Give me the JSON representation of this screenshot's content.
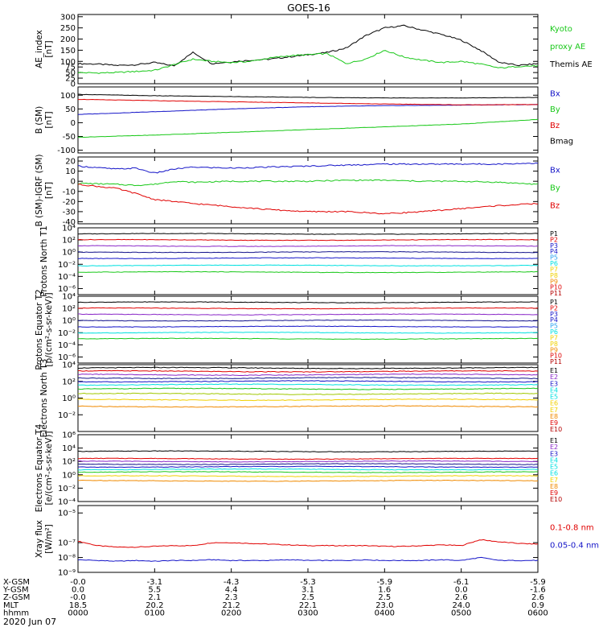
{
  "title": "GOES-16",
  "date": "2020 Jun 07",
  "colors": {
    "black": "#000000",
    "red": "#e00000",
    "green": "#18c818",
    "blue": "#1414c8",
    "cyan": "#00e0e0",
    "magenta": "#e000e0",
    "purple": "#8a28c8",
    "yellow": "#f0d000",
    "orange": "#f08a00",
    "darkred": "#b40000",
    "navy": "#14148c",
    "lightblue": "#28a0f0",
    "brightgreen": "#00dc78",
    "olive": "#a0c800"
  },
  "chart_data": [
    {
      "type": "line",
      "name": "ae",
      "ylabel": "AE_index [nT]",
      "ylim": [
        0,
        310
      ],
      "yticks": [
        "0",
        "25",
        "50",
        "75",
        "100",
        "150",
        "200",
        "250",
        "300"
      ],
      "ytick_values": [
        0,
        25,
        50,
        75,
        100,
        150,
        200,
        250,
        300
      ],
      "x_hours": [
        0.0,
        0.25,
        0.5,
        0.75,
        1.0,
        1.25,
        1.5,
        1.75,
        2.0,
        2.25,
        2.5,
        2.75,
        3.0,
        3.25,
        3.5,
        3.75,
        4.0,
        4.25,
        4.5,
        4.75,
        5.0,
        5.25,
        5.5,
        5.75,
        6.0
      ],
      "series": [
        {
          "name": "Themis AE",
          "color": "black",
          "values": [
            90,
            88,
            82,
            85,
            95,
            80,
            140,
            90,
            98,
            105,
            110,
            120,
            130,
            140,
            160,
            215,
            250,
            260,
            240,
            220,
            195,
            150,
            95,
            82,
            90
          ]
        },
        {
          "name": "Kyoto proxy AE",
          "color": "green",
          "values": [
            50,
            48,
            50,
            55,
            60,
            85,
            110,
            100,
            95,
            100,
            115,
            125,
            130,
            135,
            90,
            110,
            150,
            120,
            105,
            95,
            100,
            88,
            70,
            78,
            80
          ]
        }
      ],
      "legend": [
        {
          "label": "Kyoto",
          "color": "green"
        },
        {
          "label": "proxy AE",
          "color": "green"
        },
        {
          "label": "Themis AE",
          "color": "black"
        }
      ]
    },
    {
      "type": "line",
      "name": "bsm",
      "ylabel": "B (SM) [nT]",
      "ylim": [
        -110,
        130
      ],
      "yticks": [
        "-100",
        "-50",
        "0",
        "50",
        "100"
      ],
      "ytick_values": [
        -100,
        -50,
        0,
        50,
        100
      ],
      "x_hours": [
        0,
        1,
        2,
        3,
        4,
        5,
        6
      ],
      "series": [
        {
          "name": "Bx",
          "color": "blue",
          "values": [
            30,
            40,
            50,
            58,
            62,
            64,
            66
          ]
        },
        {
          "name": "By",
          "color": "green",
          "values": [
            -53,
            -45,
            -35,
            -25,
            -15,
            -5,
            12
          ]
        },
        {
          "name": "Bz",
          "color": "red",
          "values": [
            85,
            80,
            76,
            72,
            68,
            65,
            66
          ]
        },
        {
          "name": "Bmag",
          "color": "black",
          "values": [
            103,
            98,
            95,
            92,
            90,
            90,
            92
          ]
        }
      ],
      "legend": [
        {
          "label": "Bx",
          "color": "blue"
        },
        {
          "label": "By",
          "color": "green"
        },
        {
          "label": "Bz",
          "color": "red"
        },
        {
          "label": "Bmag",
          "color": "black"
        }
      ]
    },
    {
      "type": "line",
      "name": "bigrf",
      "ylabel": "B (SM)-IGRF (SM) [nT]",
      "ylim": [
        -42,
        24
      ],
      "yticks": [
        "-40",
        "-30",
        "-20",
        "-10",
        "0",
        "10",
        "20"
      ],
      "ytick_values": [
        -40,
        -30,
        -20,
        -10,
        0,
        10,
        20
      ],
      "x_hours": [
        0,
        0.5,
        0.75,
        1.0,
        1.25,
        1.5,
        2.0,
        2.5,
        3.0,
        3.5,
        4.0,
        4.5,
        5.0,
        5.5,
        6.0
      ],
      "series": [
        {
          "name": "Bx",
          "color": "blue",
          "values": [
            15,
            12,
            13,
            8,
            12,
            14,
            13,
            14,
            15,
            16,
            17,
            17,
            17,
            17,
            18
          ]
        },
        {
          "name": "By",
          "color": "green",
          "values": [
            -2,
            -3,
            -4,
            -3,
            0,
            -1,
            0,
            0,
            0,
            1,
            1,
            0,
            0,
            -1,
            -3
          ]
        },
        {
          "name": "Bz",
          "color": "red",
          "values": [
            -3,
            -7,
            -12,
            -18,
            -20,
            -22,
            -25,
            -28,
            -30,
            -30,
            -32,
            -30,
            -27,
            -24,
            -22
          ]
        }
      ],
      "legend": [
        {
          "label": "Bx",
          "color": "blue"
        },
        {
          "label": "By",
          "color": "green"
        },
        {
          "label": "Bz",
          "color": "red"
        }
      ]
    },
    {
      "type": "line",
      "log": true,
      "name": "protonsN",
      "ylabel": "Protons North T1",
      "ylim_exp": [
        -7,
        4
      ],
      "yticks": [
        "10⁴",
        "10²",
        "10⁰",
        "10⁻²",
        "10⁻⁴",
        "10⁻⁶"
      ],
      "ytick_exps": [
        4,
        2,
        0,
        -2,
        -4,
        -6
      ],
      "series": [
        {
          "name": "P1",
          "color": "black",
          "log10": 3.0
        },
        {
          "name": "P2",
          "color": "red",
          "log10": 2.0
        },
        {
          "name": "P3",
          "color": "purple",
          "log10": 1.0
        },
        {
          "name": "P4",
          "color": "navy",
          "log10": 0.0
        },
        {
          "name": "P5",
          "color": "blue",
          "log10": -1.0
        },
        {
          "name": "P6",
          "color": "cyan",
          "log10": -2.2
        },
        {
          "name": "P7",
          "color": "green",
          "log10": -3.3
        }
      ],
      "legend": [
        {
          "label": "P1",
          "color": "black"
        },
        {
          "label": "P2",
          "color": "red"
        },
        {
          "label": "P3",
          "color": "blue"
        },
        {
          "label": "P4",
          "color": "blue"
        },
        {
          "label": "P5",
          "color": "lightblue"
        },
        {
          "label": "P6",
          "color": "cyan"
        },
        {
          "label": "P7",
          "color": "yellow"
        },
        {
          "label": "P8",
          "color": "yellow"
        },
        {
          "label": "P9",
          "color": "orange"
        },
        {
          "label": "P10",
          "color": "red"
        },
        {
          "label": "P11",
          "color": "darkred"
        }
      ]
    },
    {
      "type": "line",
      "log": true,
      "name": "protonsE",
      "ylabel": "Protons Equator T2 [p/(cm²-s-sr-keV)]",
      "ylim_exp": [
        -7,
        4
      ],
      "yticks": [
        "10⁴",
        "10²",
        "10⁰",
        "10⁻²",
        "10⁻⁴",
        "10⁻⁶"
      ],
      "ytick_exps": [
        4,
        2,
        0,
        -2,
        -4,
        -6
      ],
      "series": [
        {
          "name": "P1",
          "color": "black",
          "log10": 3.0
        },
        {
          "name": "P2",
          "color": "red",
          "log10": 2.0
        },
        {
          "name": "P3",
          "color": "purple",
          "log10": 1.0
        },
        {
          "name": "P4",
          "color": "navy",
          "log10": 0.0
        },
        {
          "name": "P5",
          "color": "blue",
          "log10": -1.0
        },
        {
          "name": "P6",
          "color": "cyan",
          "log10": -2.0
        },
        {
          "name": "P7",
          "color": "green",
          "log10": -3.0
        }
      ],
      "legend": [
        {
          "label": "P1",
          "color": "black"
        },
        {
          "label": "P2",
          "color": "red"
        },
        {
          "label": "P3",
          "color": "blue"
        },
        {
          "label": "P4",
          "color": "blue"
        },
        {
          "label": "P5",
          "color": "lightblue"
        },
        {
          "label": "P6",
          "color": "cyan"
        },
        {
          "label": "P7",
          "color": "yellow"
        },
        {
          "label": "P8",
          "color": "yellow"
        },
        {
          "label": "P9",
          "color": "orange"
        },
        {
          "label": "P10",
          "color": "red"
        },
        {
          "label": "P11",
          "color": "darkred"
        }
      ]
    },
    {
      "type": "line",
      "log": true,
      "name": "electronsN",
      "ylabel": "Electrons North T3",
      "ylim_exp": [
        -4,
        4
      ],
      "yticks": [
        "10⁴",
        "10²",
        "10⁰",
        "10⁻²"
      ],
      "ytick_exps": [
        4,
        2,
        0,
        -2
      ],
      "series": [
        {
          "name": "E1",
          "color": "black",
          "log10": 3.6
        },
        {
          "name": "E2",
          "color": "red",
          "log10": 3.2
        },
        {
          "name": "E3",
          "color": "purple",
          "log10": 2.8
        },
        {
          "name": "E4",
          "color": "navy",
          "log10": 2.4
        },
        {
          "name": "E5",
          "color": "blue",
          "log10": 2.0
        },
        {
          "name": "E6",
          "color": "cyan",
          "log10": 1.6
        },
        {
          "name": "E7",
          "color": "green",
          "log10": 1.1
        },
        {
          "name": "E8",
          "color": "olive",
          "log10": 0.5
        },
        {
          "name": "E9",
          "color": "yellow",
          "log10": -0.2
        },
        {
          "name": "E10",
          "color": "orange",
          "log10": -1.0
        }
      ],
      "legend": [
        {
          "label": "E1",
          "color": "black"
        },
        {
          "label": "E2",
          "color": "purple"
        },
        {
          "label": "E3",
          "color": "blue"
        },
        {
          "label": "E4",
          "color": "cyan"
        },
        {
          "label": "E5",
          "color": "cyan"
        },
        {
          "label": "E6",
          "color": "yellow"
        },
        {
          "label": "E7",
          "color": "yellow"
        },
        {
          "label": "E8",
          "color": "orange"
        },
        {
          "label": "E9",
          "color": "red"
        },
        {
          "label": "E10",
          "color": "darkred"
        }
      ]
    },
    {
      "type": "line",
      "log": true,
      "name": "electronsE",
      "ylabel": "Electrons Equator T4 [e/(cm²-s-sr-keV)]",
      "ylim_exp": [
        -4,
        6
      ],
      "yticks": [
        "10⁶",
        "10⁴",
        "10²",
        "10⁰",
        "10⁻²",
        "10⁻⁴"
      ],
      "ytick_exps": [
        6,
        4,
        2,
        0,
        -2,
        -4
      ],
      "series": [
        {
          "name": "E1",
          "color": "black",
          "log10": 3.5
        },
        {
          "name": "E2",
          "color": "red",
          "log10": 2.4
        },
        {
          "name": "E3",
          "color": "purple",
          "log10": 2.0
        },
        {
          "name": "E4",
          "color": "navy",
          "log10": 1.6
        },
        {
          "name": "E5",
          "color": "blue",
          "log10": 1.2
        },
        {
          "name": "E6",
          "color": "cyan",
          "log10": 0.8
        },
        {
          "name": "E7",
          "color": "green",
          "log10": 0.4
        },
        {
          "name": "E8",
          "color": "yellow",
          "log10": -0.2
        },
        {
          "name": "E9",
          "color": "orange",
          "log10": -0.9
        }
      ],
      "legend": [
        {
          "label": "E1",
          "color": "black"
        },
        {
          "label": "E2",
          "color": "purple"
        },
        {
          "label": "E3",
          "color": "blue"
        },
        {
          "label": "E4",
          "color": "cyan"
        },
        {
          "label": "E5",
          "color": "cyan"
        },
        {
          "label": "E6",
          "color": "cyan"
        },
        {
          "label": "E7",
          "color": "yellow"
        },
        {
          "label": "E8",
          "color": "orange"
        },
        {
          "label": "E9",
          "color": "red"
        },
        {
          "label": "E10",
          "color": "darkred"
        }
      ]
    },
    {
      "type": "line",
      "log": true,
      "name": "xray",
      "ylabel": "Xray flux [W/m²]",
      "ylim_exp": [
        -9,
        -4.5
      ],
      "yticks": [
        "10⁻⁵",
        "10⁻⁷",
        "10⁻⁸",
        "10⁻⁹"
      ],
      "ytick_exps": [
        -5,
        -7,
        -8,
        -9
      ],
      "x_hours": [
        0,
        0.25,
        0.5,
        0.75,
        1.0,
        1.25,
        1.5,
        1.75,
        2.0,
        2.25,
        2.5,
        2.75,
        3.0,
        3.25,
        3.5,
        3.75,
        4.0,
        4.25,
        4.5,
        4.75,
        5.0,
        5.25,
        5.5,
        5.75,
        6.0
      ],
      "series": [
        {
          "name": "0.1-0.8 nm",
          "color": "red",
          "values_log10": [
            -6.9,
            -7.2,
            -7.3,
            -7.3,
            -7.25,
            -7.2,
            -7.2,
            -7.0,
            -7.0,
            -7.05,
            -7.1,
            -7.15,
            -7.2,
            -7.2,
            -7.2,
            -7.2,
            -7.25,
            -7.25,
            -7.2,
            -7.15,
            -7.2,
            -6.8,
            -6.95,
            -7.05,
            -7.1
          ]
        },
        {
          "name": "0.05-0.4 nm",
          "color": "blue",
          "values_log10": [
            -8.15,
            -8.2,
            -8.25,
            -8.2,
            -8.25,
            -8.2,
            -8.2,
            -8.15,
            -8.2,
            -8.2,
            -8.2,
            -8.15,
            -8.2,
            -8.2,
            -8.2,
            -8.15,
            -8.2,
            -8.2,
            -8.2,
            -8.15,
            -8.2,
            -8.0,
            -8.2,
            -8.2,
            -8.2
          ]
        }
      ],
      "legend": [
        {
          "label": "0.1-0.8 nm",
          "color": "red"
        },
        {
          "label": "0.05-0.4 nm",
          "color": "blue"
        }
      ]
    }
  ],
  "x_axis": {
    "rows": [
      {
        "label": "X-GSM",
        "values": [
          "-0.0",
          "-3.1",
          "-4.3",
          "-5.3",
          "-5.9",
          "-6.1",
          "-5.9"
        ]
      },
      {
        "label": "Y-GSM",
        "values": [
          "0.0",
          "5.5",
          "4.4",
          "3.1",
          "1.6",
          "0.0",
          "-1.6"
        ]
      },
      {
        "label": "Z-GSM",
        "values": [
          "-0.0",
          "2.1",
          "2.3",
          "2.5",
          "2.5",
          "2.6",
          "2.6"
        ]
      },
      {
        "label": "MLT",
        "values": [
          "18.5",
          "20.2",
          "21.2",
          "22.1",
          "23.0",
          "24.0",
          "0.9"
        ]
      },
      {
        "label": "hhmm",
        "values": [
          "0000",
          "0100",
          "0200",
          "0300",
          "0400",
          "0500",
          "0600"
        ]
      }
    ]
  }
}
